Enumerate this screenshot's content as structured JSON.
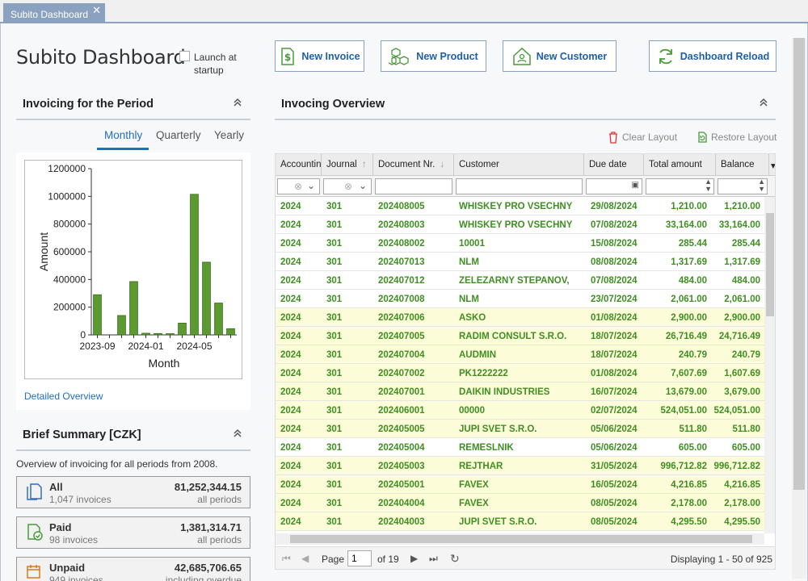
{
  "window": {
    "tab_title": "Subito Dashboard",
    "close_glyph": "✕"
  },
  "header": {
    "title": "Subito Dashboard",
    "launch_label": "Launch at startup",
    "launch_checked": false
  },
  "toolbar": {
    "new_invoice": "New Invoice",
    "new_product": "New Product",
    "new_customer": "New Customer",
    "dashboard_reload": "Dashboard Reload"
  },
  "invoicing_period": {
    "title": "Invoicing for the Period",
    "tabs": [
      "Monthly",
      "Quarterly",
      "Yearly"
    ],
    "active_tab": "Monthly",
    "detail_link": "Detailed Overview"
  },
  "chart_data": {
    "type": "bar",
    "xlabel": "Month",
    "ylabel": "Amount",
    "ylim": [
      0,
      1200000
    ],
    "yticks": [
      "1200000",
      "1000000",
      "800000",
      "600000",
      "400000",
      "200000",
      "0"
    ],
    "xticks": [
      "2023-09",
      "2024-01",
      "2024-05"
    ],
    "categories": [
      "2023-09",
      "2023-10",
      "2023-11",
      "2023-12",
      "2024-01",
      "2024-02",
      "2024-03",
      "2024-04",
      "2024-05",
      "2024-06",
      "2024-07",
      "2024-08"
    ],
    "values": [
      290000,
      0,
      140000,
      385000,
      12000,
      10000,
      5000,
      85000,
      1015000,
      525000,
      230000,
      45000
    ],
    "bar_color": "#5b9a2e"
  },
  "brief_summary": {
    "title": "Brief Summary [CZK]",
    "description": "Overview of invoicing for all periods from 2008.",
    "cards": [
      {
        "label": "All",
        "sub": "1,047 invoices",
        "amount": "81,252,344.15",
        "sub2": "all periods"
      },
      {
        "label": "Paid",
        "sub": "98 invoices",
        "amount": "1,381,314.71",
        "sub2": "all periods"
      },
      {
        "label": "Unpaid",
        "sub": "949 invoices",
        "amount": "42,685,706.65",
        "sub2": "including overdue"
      }
    ]
  },
  "overview": {
    "title": "Invocing Overview",
    "clear_layout": "Clear Layout",
    "restore_layout": "Restore Layout",
    "columns": [
      "Accounting",
      "Journal",
      "Document Nr.",
      "Customer",
      "Due date",
      "Total amount",
      "Balance"
    ],
    "rows": [
      {
        "acc": "2024",
        "jr": "301",
        "doc": "202408005",
        "cust": "WHISKEY PRO VSECHNY",
        "due": "29/08/2024",
        "total": "1,210.00",
        "bal": "1,210.00",
        "hl": false
      },
      {
        "acc": "2024",
        "jr": "301",
        "doc": "202408003",
        "cust": "WHISKEY PRO VSECHNY",
        "due": "07/08/2024",
        "total": "33,164.00",
        "bal": "33,164.00",
        "hl": false
      },
      {
        "acc": "2024",
        "jr": "301",
        "doc": "202408002",
        "cust": "10001",
        "due": "15/08/2024",
        "total": "285.44",
        "bal": "285.44",
        "hl": false
      },
      {
        "acc": "2024",
        "jr": "301",
        "doc": "202407013",
        "cust": "NLM",
        "due": "08/08/2024",
        "total": "1,317.69",
        "bal": "1,317.69",
        "hl": false
      },
      {
        "acc": "2024",
        "jr": "301",
        "doc": "202407012",
        "cust": "ZELEZARNY STEPANOV,",
        "due": "07/08/2024",
        "total": "484.00",
        "bal": "484.00",
        "hl": false
      },
      {
        "acc": "2024",
        "jr": "301",
        "doc": "202407008",
        "cust": "NLM",
        "due": "23/07/2024",
        "total": "2,061.00",
        "bal": "2,061.00",
        "hl": false
      },
      {
        "acc": "2024",
        "jr": "301",
        "doc": "202407006",
        "cust": "ASKO",
        "due": "01/08/2024",
        "total": "2,900.00",
        "bal": "2,900.00",
        "hl": true
      },
      {
        "acc": "2024",
        "jr": "301",
        "doc": "202407005",
        "cust": "RADIM CONSULT S.R.O.",
        "due": "18/07/2024",
        "total": "26,716.49",
        "bal": "24,716.49",
        "hl": true
      },
      {
        "acc": "2024",
        "jr": "301",
        "doc": "202407004",
        "cust": "AUDMIN",
        "due": "18/07/2024",
        "total": "240.79",
        "bal": "240.79",
        "hl": true
      },
      {
        "acc": "2024",
        "jr": "301",
        "doc": "202407002",
        "cust": "PK1222222",
        "due": "01/08/2024",
        "total": "7,607.69",
        "bal": "1,607.69",
        "hl": true
      },
      {
        "acc": "2024",
        "jr": "301",
        "doc": "202407001",
        "cust": "DAIKIN INDUSTRIES",
        "due": "16/07/2024",
        "total": "13,679.00",
        "bal": "3,679.00",
        "hl": true
      },
      {
        "acc": "2024",
        "jr": "301",
        "doc": "202406001",
        "cust": "00000",
        "due": "02/07/2024",
        "total": "524,051.00",
        "bal": "524,051.00",
        "hl": true
      },
      {
        "acc": "2024",
        "jr": "301",
        "doc": "202405005",
        "cust": "JUPI SVET S.R.O.",
        "due": "05/06/2024",
        "total": "511.80",
        "bal": "511.80",
        "hl": true
      },
      {
        "acc": "2024",
        "jr": "301",
        "doc": "202405004",
        "cust": "REMESLNIK",
        "due": "05/06/2024",
        "total": "605.00",
        "bal": "605.00",
        "hl": false
      },
      {
        "acc": "2024",
        "jr": "301",
        "doc": "202405003",
        "cust": "REJTHAR",
        "due": "31/05/2024",
        "total": "996,712.82",
        "bal": "996,712.82",
        "hl": true
      },
      {
        "acc": "2024",
        "jr": "301",
        "doc": "202405001",
        "cust": "FAVEX",
        "due": "16/05/2024",
        "total": "4,216.85",
        "bal": "4,216.85",
        "hl": true
      },
      {
        "acc": "2024",
        "jr": "301",
        "doc": "202404004",
        "cust": "FAVEX",
        "due": "08/05/2024",
        "total": "2,178.00",
        "bal": "2,178.00",
        "hl": true
      },
      {
        "acc": "2024",
        "jr": "301",
        "doc": "202404003",
        "cust": "JUPI SVET S.R.O.",
        "due": "08/05/2024",
        "total": "4,295.50",
        "bal": "4,295.50",
        "hl": true
      }
    ],
    "pager": {
      "page_label": "Page",
      "page_value": "1",
      "of_label": "of 19",
      "displaying": "Displaying 1 - 50 of 925"
    }
  }
}
